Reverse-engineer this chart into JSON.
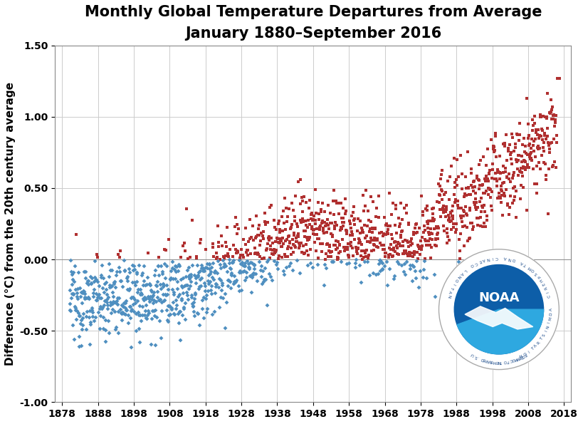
{
  "title": "Monthly Global Temperature Departures from Average",
  "subtitle": "January 1880–September 2016",
  "ylabel": "Difference (°C) from the 20th century average",
  "ylim": [
    -1.0,
    1.5
  ],
  "yticks": [
    -1.0,
    -0.5,
    0.0,
    0.5,
    1.0,
    1.5
  ],
  "xlim": [
    1876,
    2020
  ],
  "xticks": [
    1878,
    1888,
    1898,
    1908,
    1918,
    1928,
    1938,
    1948,
    1958,
    1968,
    1978,
    1988,
    1998,
    2008,
    2018
  ],
  "warm_color": "#b03030",
  "cool_color": "#4f8fc0",
  "grid_color": "#cccccc",
  "title_fontsize": 15,
  "subtitle_fontsize": 12,
  "ylabel_fontsize": 11,
  "tick_fontsize": 10,
  "noaa_blue_dark": "#0d5ea8",
  "noaa_blue_light": "#2ea8e0",
  "noaa_ring_text_color": "#1a4a8a"
}
